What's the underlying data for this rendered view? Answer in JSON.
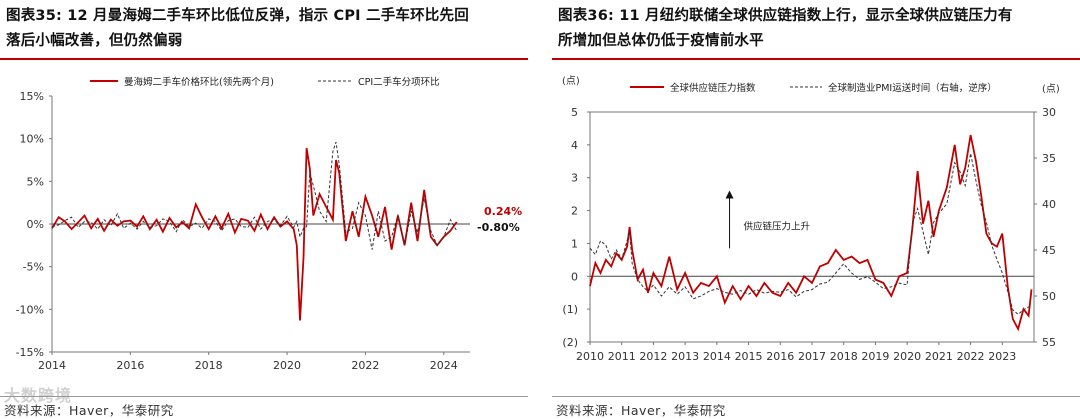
{
  "left": {
    "title_line1": "图表35:  12 月曼海姆二手车环比低位反弹，指示 CPI 二手车环比先回",
    "title_line2": "落后小幅改善，但仍然偏弱",
    "source": "资料来源：Haver，华泰研究",
    "watermark": "大数跨境"
  },
  "right": {
    "title_line1": "图表36:  11 月纽约联储全球供应链指数上行，显示全球供应链压力有",
    "title_line2": "所增加但总体仍低于疫情前水平",
    "source": "资料来源：Haver，华泰研究"
  },
  "colors": {
    "red": "#c00000",
    "dark": "#333333",
    "axis": "#555555"
  },
  "chart_data": [
    {
      "type": "line",
      "title": "",
      "legend_position": "top",
      "x": [
        2014.0,
        2014.17,
        2014.33,
        2014.5,
        2014.67,
        2014.83,
        2015.0,
        2015.17,
        2015.33,
        2015.5,
        2015.67,
        2015.83,
        2016.0,
        2016.17,
        2016.33,
        2016.5,
        2016.67,
        2016.83,
        2017.0,
        2017.17,
        2017.33,
        2017.5,
        2017.67,
        2017.83,
        2018.0,
        2018.17,
        2018.33,
        2018.5,
        2018.67,
        2018.83,
        2019.0,
        2019.17,
        2019.33,
        2019.5,
        2019.67,
        2019.83,
        2020.0,
        2020.17,
        2020.25,
        2020.33,
        2020.42,
        2020.5,
        2020.58,
        2020.67,
        2020.83,
        2021.0,
        2021.17,
        2021.25,
        2021.33,
        2021.5,
        2021.67,
        2021.83,
        2022.0,
        2022.17,
        2022.33,
        2022.5,
        2022.67,
        2022.83,
        2023.0,
        2023.17,
        2023.33,
        2023.5,
        2023.67,
        2023.83,
        2024.0,
        2024.17,
        2024.33
      ],
      "series": [
        {
          "name": "曼海姆二手车价格环比(领先两个月)",
          "color": "#c00000",
          "values": [
            -0.5,
            0.8,
            0.3,
            -0.6,
            0.2,
            1.0,
            -0.5,
            0.6,
            -0.8,
            0.5,
            -0.2,
            0.3,
            0.4,
            -0.3,
            0.9,
            -0.6,
            0.5,
            -0.9,
            0.7,
            -0.4,
            0.2,
            -0.5,
            2.3,
            0.8,
            -0.6,
            0.9,
            -0.5,
            1.2,
            -1.0,
            0.6,
            0.4,
            -0.8,
            1.1,
            -0.6,
            0.8,
            -0.3,
            0.3,
            -0.6,
            -2.5,
            -11.3,
            -4.0,
            8.9,
            6.5,
            1.0,
            3.5,
            2.0,
            0.5,
            7.5,
            6.0,
            -2.0,
            1.5,
            -1.5,
            3.2,
            1.0,
            -1.5,
            2.0,
            -3.0,
            1.0,
            -2.5,
            2.5,
            -2.0,
            4.0,
            -1.5,
            -2.5,
            -1.5,
            -0.8,
            0.24
          ]
        },
        {
          "name": "CPI二手车分项环比",
          "color": "#333333",
          "dash": "3,2",
          "values": [
            -0.3,
            -0.1,
            0.4,
            0.8,
            -0.4,
            0.3,
            0.2,
            -0.6,
            0.5,
            -0.2,
            1.2,
            -0.5,
            0.1,
            -0.6,
            0.3,
            -0.4,
            -0.2,
            0.6,
            0.3,
            -0.9,
            0.5,
            -0.3,
            0.1,
            -0.5,
            0.6,
            0.3,
            -0.8,
            0.4,
            0.6,
            -0.3,
            -0.4,
            0.8,
            -0.6,
            0.3,
            0.5,
            -0.2,
            0.9,
            -0.4,
            0.3,
            -1.5,
            -0.5,
            -0.3,
            6.0,
            4.5,
            1.5,
            0.3,
            8.5,
            9.6,
            7.0,
            -1.0,
            -0.5,
            2.5,
            1.0,
            -3.0,
            1.5,
            -2.0,
            -1.5,
            1.0,
            -2.5,
            1.5,
            -1.0,
            3.0,
            -0.8,
            -2.5,
            -1.5,
            0.5,
            -0.8
          ]
        }
      ],
      "ylim": [
        -15,
        15
      ],
      "yticks": [
        "15%",
        "10%",
        "5%",
        "0%",
        "-5%",
        "-10%",
        "-15%"
      ],
      "xticks": [
        "2014",
        "2016",
        "2018",
        "2020",
        "2022",
        "2024"
      ],
      "annotations": [
        {
          "text": "0.24%",
          "color": "#c00000"
        },
        {
          "text": "-0.80%",
          "color": "#111111"
        }
      ]
    },
    {
      "type": "line",
      "title": "",
      "legend_position": "top",
      "ylabel_left": "(点)",
      "ylabel_right": "(点)",
      "x": [
        2010.0,
        2010.17,
        2010.33,
        2010.5,
        2010.67,
        2010.83,
        2011.0,
        2011.17,
        2011.25,
        2011.33,
        2011.5,
        2011.67,
        2011.83,
        2012.0,
        2012.25,
        2012.5,
        2012.75,
        2013.0,
        2013.25,
        2013.5,
        2013.75,
        2014.0,
        2014.25,
        2014.5,
        2014.75,
        2015.0,
        2015.25,
        2015.5,
        2015.75,
        2016.0,
        2016.25,
        2016.5,
        2016.75,
        2017.0,
        2017.25,
        2017.5,
        2017.75,
        2018.0,
        2018.25,
        2018.5,
        2018.75,
        2019.0,
        2019.25,
        2019.5,
        2019.75,
        2020.0,
        2020.17,
        2020.33,
        2020.5,
        2020.67,
        2020.83,
        2021.0,
        2021.25,
        2021.5,
        2021.67,
        2021.83,
        2022.0,
        2022.17,
        2022.33,
        2022.5,
        2022.67,
        2022.83,
        2023.0,
        2023.17,
        2023.33,
        2023.5,
        2023.67,
        2023.83,
        2023.92
      ],
      "series": [
        {
          "name": "全球供应链压力指数",
          "color": "#c00000",
          "axis": "left",
          "values": [
            -0.3,
            0.4,
            0.1,
            0.5,
            0.3,
            0.7,
            0.5,
            0.9,
            1.5,
            0.8,
            -0.1,
            0.2,
            -0.5,
            0.1,
            -0.3,
            0.6,
            -0.4,
            0.1,
            -0.5,
            -0.2,
            -0.3,
            0.0,
            -0.8,
            -0.3,
            -0.7,
            -0.3,
            -0.6,
            -0.2,
            -0.5,
            -0.6,
            -0.2,
            -0.5,
            0.0,
            -0.2,
            0.3,
            0.4,
            0.8,
            0.5,
            0.6,
            0.4,
            0.5,
            -0.1,
            -0.2,
            -0.6,
            0.0,
            0.1,
            1.5,
            3.2,
            1.6,
            2.3,
            1.2,
            2.0,
            2.7,
            4.0,
            2.8,
            3.3,
            4.3,
            3.5,
            2.5,
            1.3,
            1.0,
            0.9,
            1.3,
            -0.3,
            -1.3,
            -1.6,
            -1.0,
            -1.2,
            -0.4
          ]
        },
        {
          "name": "全球制造业PMI运送时间（右轴，逆序）",
          "color": "#333333",
          "dash": "3,2",
          "axis": "right",
          "values": [
            44.8,
            45.5,
            44.0,
            44.5,
            46.0,
            45.0,
            46.0,
            44.0,
            43.0,
            46.5,
            48.2,
            49.0,
            49.5,
            48.8,
            50.0,
            49.0,
            49.8,
            49.0,
            50.3,
            50.0,
            49.5,
            49.2,
            49.6,
            49.8,
            49.4,
            49.8,
            49.3,
            49.7,
            49.5,
            49.6,
            49.3,
            50.1,
            49.5,
            49.3,
            48.7,
            48.5,
            47.5,
            46.5,
            47.5,
            48.2,
            47.9,
            48.5,
            49.2,
            49.0,
            48.6,
            48.8,
            42.0,
            40.5,
            43.0,
            45.5,
            42.0,
            41.0,
            40.0,
            35.5,
            36.5,
            38.0,
            34.5,
            37.5,
            40.0,
            42.0,
            44.5,
            46.0,
            47.5,
            49.5,
            51.5,
            52.0,
            51.5,
            51.2,
            51.0
          ]
        }
      ],
      "ylim_left": [
        -2,
        5
      ],
      "ylim_right": [
        55,
        30
      ],
      "yticks_left": [
        "5",
        "4",
        "3",
        "2",
        "1",
        "0",
        "(1)",
        "(2)"
      ],
      "yticks_right": [
        "30",
        "35",
        "40",
        "45",
        "50",
        "55"
      ],
      "xticks": [
        "2010",
        "2011",
        "2012",
        "2013",
        "2014",
        "2015",
        "2016",
        "2017",
        "2018",
        "2019",
        "2020",
        "2021",
        "2022",
        "2023"
      ],
      "annotations": [
        {
          "text": "供应链压力上升"
        }
      ]
    }
  ]
}
